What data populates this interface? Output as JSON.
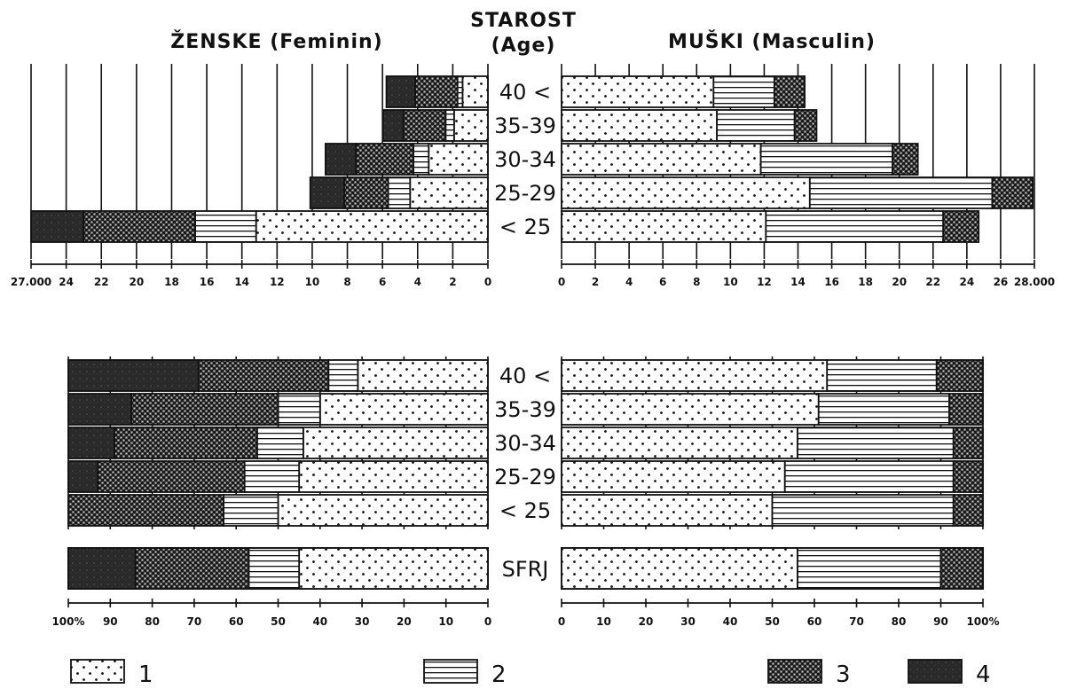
{
  "headers": {
    "female": "ŽENSKE (Feminin)",
    "age_line1": "STAROST",
    "age_line2": "(Age)",
    "male": "MUŠKI (Masculin)"
  },
  "age_groups": [
    "40 <",
    "35-39",
    "30-34",
    "25-29",
    "< 25"
  ],
  "total_label": "SFRJ",
  "legend": [
    "1",
    "2",
    "3",
    "4"
  ],
  "colors": {
    "ink": "#111111",
    "paper": "#ffffff",
    "dark": "#2a2a2a"
  },
  "chart_data": [
    {
      "type": "bar",
      "panel": "absolute-female",
      "orientation": "horizontal",
      "direction": "right-to-left",
      "stacked": true,
      "categories": [
        "40 <",
        "35-39",
        "30-34",
        "25-29",
        "< 25"
      ],
      "series": [
        {
          "name": "1",
          "values": [
            1.5,
            2.0,
            3.5,
            4.6,
            13.7
          ]
        },
        {
          "name": "2",
          "values": [
            0.3,
            0.5,
            0.9,
            1.3,
            3.6
          ]
        },
        {
          "name": "3",
          "values": [
            2.5,
            2.5,
            3.4,
            2.6,
            6.6
          ]
        },
        {
          "name": "4",
          "values": [
            1.7,
            1.2,
            1.8,
            2.0,
            3.1
          ]
        }
      ],
      "xticks": [
        "27.000",
        "24",
        "22",
        "20",
        "18",
        "16",
        "14",
        "12",
        "10",
        "8",
        "6",
        "4",
        "2",
        "0"
      ],
      "xlim": [
        0,
        27
      ],
      "grid": true
    },
    {
      "type": "bar",
      "panel": "absolute-male",
      "orientation": "horizontal",
      "stacked": true,
      "categories": [
        "40 <",
        "35-39",
        "30-34",
        "25-29",
        "< 25"
      ],
      "series": [
        {
          "name": "1",
          "values": [
            9.0,
            9.2,
            11.8,
            14.7,
            12.1
          ]
        },
        {
          "name": "2",
          "values": [
            3.6,
            4.6,
            7.8,
            10.8,
            10.5
          ]
        },
        {
          "name": "3",
          "values": [
            1.8,
            1.3,
            1.5,
            2.4,
            2.1
          ]
        },
        {
          "name": "4",
          "values": [
            0,
            0,
            0,
            0,
            0
          ]
        }
      ],
      "xticks": [
        "0",
        "2",
        "4",
        "6",
        "8",
        "10",
        "12",
        "14",
        "16",
        "18",
        "20",
        "22",
        "24",
        "26",
        "28.000"
      ],
      "xlim": [
        0,
        28
      ],
      "grid": true
    },
    {
      "type": "bar",
      "panel": "percent-female",
      "orientation": "horizontal",
      "direction": "right-to-left",
      "stacked": true,
      "categories": [
        "40 <",
        "35-39",
        "30-34",
        "25-29",
        "< 25",
        "SFRJ"
      ],
      "series": [
        {
          "name": "1",
          "values": [
            31,
            40,
            44,
            45,
            50,
            45
          ]
        },
        {
          "name": "2",
          "values": [
            7,
            10,
            11,
            13,
            13,
            12
          ]
        },
        {
          "name": "3",
          "values": [
            31,
            35,
            34,
            35,
            37,
            27
          ]
        },
        {
          "name": "4",
          "values": [
            31,
            15,
            11,
            7,
            0,
            16
          ]
        }
      ],
      "xticks": [
        "100%",
        "90",
        "80",
        "70",
        "60",
        "50",
        "40",
        "30",
        "20",
        "10",
        "0"
      ],
      "xlim": [
        0,
        100
      ],
      "grid": true
    },
    {
      "type": "bar",
      "panel": "percent-male",
      "orientation": "horizontal",
      "stacked": true,
      "categories": [
        "40 <",
        "35-39",
        "30-34",
        "25-29",
        "< 25",
        "SFRJ"
      ],
      "series": [
        {
          "name": "1",
          "values": [
            63,
            61,
            56,
            53,
            50,
            56
          ]
        },
        {
          "name": "2",
          "values": [
            26,
            31,
            37,
            40,
            43,
            34
          ]
        },
        {
          "name": "3",
          "values": [
            11,
            8,
            7,
            7,
            7,
            10
          ]
        },
        {
          "name": "4",
          "values": [
            0,
            0,
            0,
            0,
            0,
            0
          ]
        }
      ],
      "xticks": [
        "0",
        "10",
        "20",
        "30",
        "40",
        "50",
        "60",
        "70",
        "80",
        "90",
        "100%"
      ],
      "xlim": [
        0,
        100
      ],
      "grid": true
    }
  ]
}
